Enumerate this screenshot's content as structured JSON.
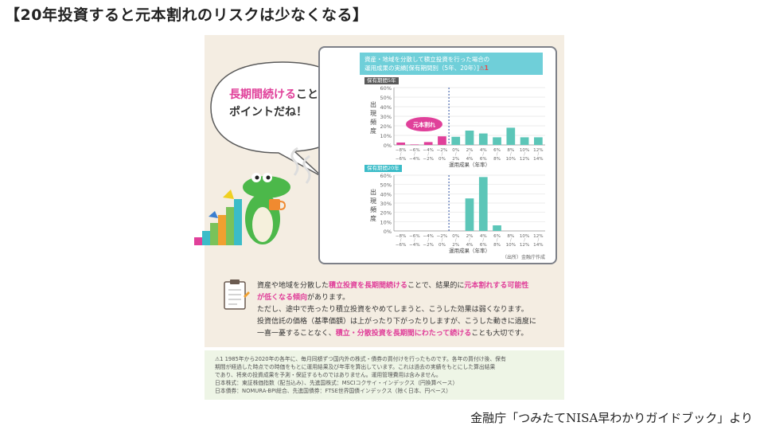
{
  "title": "【20年投資すると元本割れのリスクは少なくなる】",
  "source": "金融庁「つみたてNISA早わかりガイドブック」より",
  "bubble": {
    "highlight": "長期間続ける",
    "rest1": "ことが",
    "line2": "ポイントだね！"
  },
  "chart_header": {
    "line1": "資産・地域を分散して積立投資を行った場合の",
    "line2": "運用成果の実績[保有期間別（5年、20年）]",
    "warn": "⚠1"
  },
  "chart_data": [
    {
      "type": "bar",
      "title": "保有期間5年",
      "ylabel": "出現頻度",
      "xlabel": "運用成果（年率）",
      "ylim": [
        0,
        60
      ],
      "yticks": [
        "60%",
        "50%",
        "40%",
        "30%",
        "20%",
        "10%",
        "0%"
      ],
      "categories": [
        "−8%〜−6%",
        "−6%〜−4%",
        "−4%〜−2%",
        "−2%〜0%",
        "0%〜2%",
        "2%〜4%",
        "4%〜6%",
        "6%〜8%",
        "8%〜10%",
        "10%〜12%",
        "12%〜14%"
      ],
      "values": [
        2.5,
        0.5,
        3,
        9,
        8.5,
        15,
        12,
        8,
        18,
        8,
        8
      ],
      "colors": [
        "#e0409a",
        "#e0409a",
        "#e0409a",
        "#e0409a",
        "#5cc6b8",
        "#5cc6b8",
        "#5cc6b8",
        "#5cc6b8",
        "#5cc6b8",
        "#5cc6b8",
        "#5cc6b8"
      ],
      "annotation": "元本割れ"
    },
    {
      "type": "bar",
      "title": "保有期間20年",
      "ylabel": "出現頻度",
      "xlabel": "運用成果（年率）",
      "ylim": [
        0,
        60
      ],
      "yticks": [
        "60%",
        "50%",
        "40%",
        "30%",
        "20%",
        "10%",
        "0%"
      ],
      "categories": [
        "−8%〜−6%",
        "−6%〜−4%",
        "−4%〜−2%",
        "−2%〜0%",
        "0%〜2%",
        "2%〜4%",
        "4%〜6%",
        "6%〜8%",
        "8%〜10%",
        "10%〜12%",
        "12%〜14%"
      ],
      "values": [
        0,
        0,
        0,
        0,
        0,
        35,
        58,
        6,
        0,
        0,
        0
      ],
      "colors": [
        "#e0409a",
        "#e0409a",
        "#e0409a",
        "#e0409a",
        "#5cc6b8",
        "#5cc6b8",
        "#5cc6b8",
        "#5cc6b8",
        "#5cc6b8",
        "#5cc6b8",
        "#5cc6b8"
      ],
      "credit": "（出所）金融庁作成"
    }
  ],
  "tick_top": [
    "−8%",
    "−6%",
    "−4%",
    "−2%",
    "0%",
    "2%",
    "4%",
    "6%",
    "8%",
    "10%",
    "12%"
  ],
  "tick_bottom": [
    "−6%",
    "−4%",
    "−2%",
    "0%",
    "2%",
    "4%",
    "6%",
    "8%",
    "10%",
    "12%",
    "14%"
  ],
  "description": {
    "p1a": "資産や地域を分散した",
    "p1b": "積立投資を長期間続ける",
    "p1c": "ことで、結果的に",
    "p1d": "元本割れする可能性",
    "p1e": "が低くなる傾向",
    "p1f": "があります。",
    "p2": "ただし、途中で売ったり積立投資をやめてしまうと、こうした効果は弱くなります。",
    "p3": "投資信託の価格（基準価額）は上がったり下がったりしますが、こうした動きに過度に",
    "p4a": "一喜一憂することなく、",
    "p4b": "積立・分散投資を長期間にわたって続ける",
    "p4c": "ことも大切です。"
  },
  "notes": {
    "l1": "⚠1 1985年から2020年の各年に、毎月同額ずつ国内外の株式・債券の買付けを行ったものです。各年の買付け後、保有",
    "l2": "期間が経過した時点での時価をもとに運用結果及び年率を算出しています。これは過去の実績をもとにした算出結果",
    "l3": "であり、将来の投資成果を予測・保証するものではありません。運用管理費用は含みません。",
    "l4": "日本株式：東証株価指数（配当込み）、先進国株式：MSCIコクサイ・インデックス（円換算ベース）",
    "l5": "日本債券：NOMURA-BPI総合、先進国債券：FTSE世界国債インデックス（除く日本、円ベース）"
  }
}
